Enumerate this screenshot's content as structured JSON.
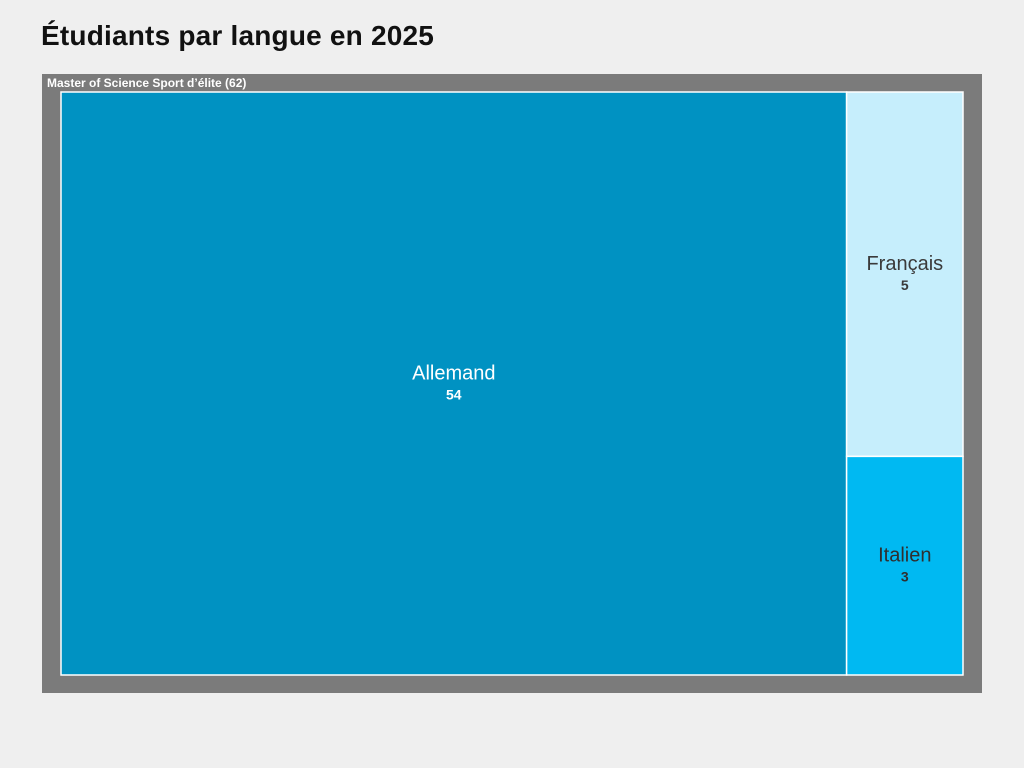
{
  "title": "Étudiants par langue en 2025",
  "chart_data": {
    "type": "treemap",
    "root": {
      "name": "Master of Science Sport d’élite",
      "value": 62,
      "label": "Master of Science Sport d’élite (62)",
      "color": "#7b7b7b"
    },
    "items": [
      {
        "name": "Allemand",
        "value": 54,
        "color": "#0092c2",
        "text_color": "#ffffff"
      },
      {
        "name": "Français",
        "value": 5,
        "color": "#c6eefc",
        "text_color": "#3a3a3a"
      },
      {
        "name": "Italien",
        "value": 3,
        "color": "#00b9f2",
        "text_color": "#2f2f2f"
      }
    ]
  }
}
